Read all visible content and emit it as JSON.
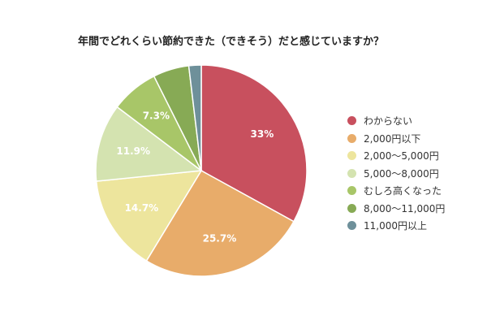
{
  "chart_data": {
    "type": "pie",
    "title": "年間でどれくらい節約できた（できそう）だと感じていますか？",
    "categories": [
      "わからない",
      "2,000円以下",
      "2,000〜5,000円",
      "5,000〜8,000円",
      "むしろ高くなった",
      "8,000〜11,000円",
      "11,000円以上"
    ],
    "values": [
      33.0,
      25.7,
      14.7,
      11.9,
      7.3,
      5.5,
      1.9
    ],
    "data_labels": [
      "33%",
      "25.7%",
      "14.7%",
      "11.9%",
      "7.3%",
      "",
      ""
    ],
    "colors": [
      "#c8505e",
      "#e8ac6a",
      "#ede59d",
      "#d4e3b0",
      "#a8c668",
      "#87aa55",
      "#6e909a"
    ],
    "start_angle_deg": 0,
    "direction": "clockwise",
    "legend_position": "right"
  }
}
